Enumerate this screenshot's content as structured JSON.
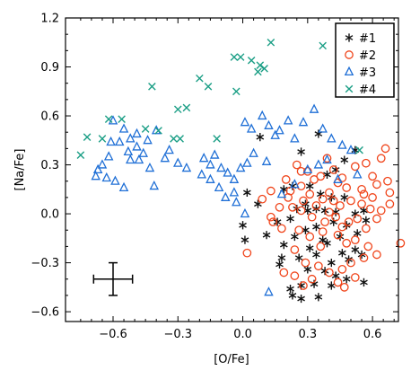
{
  "chart_data": {
    "type": "scatter",
    "xlabel": "[O/Fe]",
    "ylabel": "[Na/Fe]",
    "xlim": [
      -0.82,
      0.72
    ],
    "ylim": [
      -0.66,
      1.2
    ],
    "x_ticks": [
      -0.6,
      -0.3,
      0.0,
      0.3,
      0.6
    ],
    "x_tick_labels": [
      "−0.6",
      "−0.3",
      "0.0",
      "0.3",
      "0.6"
    ],
    "y_ticks": [
      -0.6,
      -0.3,
      0.0,
      0.3,
      0.6,
      0.9,
      1.2
    ],
    "y_tick_labels": [
      "−0.6",
      "−0.3",
      "0.0",
      "0.3",
      "0.6",
      "0.9",
      "1.2"
    ],
    "grid": false,
    "legend_position": "top-right",
    "error_bar": {
      "x": -0.6,
      "y": -0.4,
      "xerr": 0.09,
      "yerr": 0.1,
      "color": "#000000"
    },
    "series": [
      {
        "name": "#1",
        "marker": "asterisk",
        "color": "#111111",
        "points": [
          [
            0.08,
            0.47
          ],
          [
            0.27,
            0.38
          ],
          [
            0.35,
            0.49
          ],
          [
            0.52,
            0.39
          ],
          [
            0.47,
            0.33
          ],
          [
            0.43,
            0.27
          ],
          [
            0.39,
            0.24
          ],
          [
            0.02,
            0.13
          ],
          [
            0.07,
            0.06
          ],
          [
            0.19,
            0.15
          ],
          [
            0.23,
            0.17
          ],
          [
            0.31,
            0.17
          ],
          [
            0.36,
            0.12
          ],
          [
            0.41,
            0.1
          ],
          [
            0.47,
            0.1
          ],
          [
            0.29,
            0.06
          ],
          [
            0.34,
            0.03
          ],
          [
            0.38,
            0.02
          ],
          [
            0.43,
            0.01
          ],
          [
            0.52,
            0.0
          ],
          [
            0.56,
            0.02
          ],
          [
            0.25,
            0.03
          ],
          [
            0.3,
            0.02
          ],
          [
            0.0,
            -0.07
          ],
          [
            0.16,
            -0.05
          ],
          [
            0.22,
            -0.03
          ],
          [
            0.34,
            -0.08
          ],
          [
            0.42,
            -0.05
          ],
          [
            0.48,
            -0.07
          ],
          [
            0.57,
            -0.04
          ],
          [
            0.11,
            -0.13
          ],
          [
            0.24,
            -0.14
          ],
          [
            0.29,
            -0.1
          ],
          [
            0.37,
            -0.16
          ],
          [
            0.45,
            -0.14
          ],
          [
            0.53,
            -0.12
          ],
          [
            0.01,
            -0.16
          ],
          [
            0.19,
            -0.19
          ],
          [
            0.31,
            -0.21
          ],
          [
            0.39,
            -0.18
          ],
          [
            0.46,
            -0.24
          ],
          [
            0.52,
            -0.22
          ],
          [
            0.18,
            -0.27
          ],
          [
            0.26,
            -0.27
          ],
          [
            0.34,
            -0.25
          ],
          [
            0.41,
            -0.3
          ],
          [
            0.49,
            -0.28
          ],
          [
            0.55,
            -0.25
          ],
          [
            0.3,
            -0.34
          ],
          [
            0.38,
            -0.35
          ],
          [
            0.43,
            -0.38
          ],
          [
            0.48,
            -0.4
          ],
          [
            0.56,
            -0.42
          ],
          [
            0.22,
            -0.46
          ],
          [
            0.27,
            -0.44
          ],
          [
            0.33,
            -0.43
          ],
          [
            0.41,
            -0.44
          ],
          [
            0.23,
            -0.5
          ],
          [
            0.27,
            -0.52
          ],
          [
            0.35,
            -0.51
          ],
          [
            0.17,
            -0.31
          ]
        ]
      },
      {
        "name": "#2",
        "marker": "circle",
        "color": "#f0441a",
        "points": [
          [
            0.25,
            0.3
          ],
          [
            0.3,
            0.26
          ],
          [
            0.33,
            0.21
          ],
          [
            0.39,
            0.34
          ],
          [
            0.42,
            0.27
          ],
          [
            0.46,
            0.22
          ],
          [
            0.52,
            0.29
          ],
          [
            0.57,
            0.31
          ],
          [
            0.6,
            0.23
          ],
          [
            0.64,
            0.34
          ],
          [
            0.66,
            0.4
          ],
          [
            0.68,
            0.13
          ],
          [
            0.62,
            0.18
          ],
          [
            0.56,
            0.12
          ],
          [
            0.48,
            0.16
          ],
          [
            0.44,
            0.19
          ],
          [
            0.36,
            0.23
          ],
          [
            0.2,
            0.21
          ],
          [
            0.22,
            0.14
          ],
          [
            0.27,
            0.17
          ],
          [
            0.31,
            0.12
          ],
          [
            0.37,
            0.09
          ],
          [
            0.4,
            0.13
          ],
          [
            0.45,
            0.05
          ],
          [
            0.5,
            0.08
          ],
          [
            0.55,
            0.06
          ],
          [
            0.59,
            0.03
          ],
          [
            0.64,
            0.02
          ],
          [
            0.68,
            0.06
          ],
          [
            0.62,
            -0.03
          ],
          [
            0.57,
            -0.09
          ],
          [
            0.53,
            -0.03
          ],
          [
            0.49,
            -0.05
          ],
          [
            0.43,
            -0.02
          ],
          [
            0.38,
            -0.05
          ],
          [
            0.32,
            -0.02
          ],
          [
            0.27,
            0.02
          ],
          [
            0.23,
            0.04
          ],
          [
            0.14,
            -0.05
          ],
          [
            0.18,
            -0.09
          ],
          [
            0.26,
            -0.1
          ],
          [
            0.31,
            -0.14
          ],
          [
            0.37,
            -0.11
          ],
          [
            0.44,
            -0.13
          ],
          [
            0.48,
            -0.18
          ],
          [
            0.52,
            -0.16
          ],
          [
            0.58,
            -0.2
          ],
          [
            0.62,
            -0.25
          ],
          [
            0.56,
            -0.27
          ],
          [
            0.5,
            -0.3
          ],
          [
            0.46,
            -0.34
          ],
          [
            0.4,
            -0.36
          ],
          [
            0.35,
            -0.32
          ],
          [
            0.29,
            -0.3
          ],
          [
            0.24,
            -0.38
          ],
          [
            0.19,
            -0.36
          ],
          [
            0.28,
            -0.44
          ],
          [
            0.32,
            -0.4
          ],
          [
            0.44,
            -0.42
          ],
          [
            0.47,
            -0.45
          ],
          [
            0.52,
            -0.39
          ],
          [
            0.02,
            -0.24
          ],
          [
            0.13,
            -0.02
          ],
          [
            0.09,
            0.09
          ],
          [
            0.17,
            0.04
          ],
          [
            0.28,
            0.08
          ],
          [
            0.34,
            0.05
          ],
          [
            0.4,
            0.01
          ],
          [
            0.46,
            -0.08
          ],
          [
            0.55,
            0.15
          ],
          [
            0.6,
            0.1
          ],
          [
            0.67,
            0.2
          ],
          [
            0.73,
            -0.18
          ],
          [
            0.13,
            0.14
          ],
          [
            0.21,
            0.1
          ],
          [
            0.42,
            0.08
          ],
          [
            0.36,
            -0.2
          ],
          [
            0.24,
            -0.22
          ],
          [
            0.27,
            0.26
          ]
        ]
      },
      {
        "name": "#3",
        "marker": "triangle",
        "color": "#1f6fd6",
        "points": [
          [
            -0.6,
            0.57
          ],
          [
            -0.55,
            0.52
          ],
          [
            -0.49,
            0.49
          ],
          [
            -0.44,
            0.45
          ],
          [
            -0.4,
            0.51
          ],
          [
            -0.52,
            0.46
          ],
          [
            -0.57,
            0.44
          ],
          [
            -0.61,
            0.44
          ],
          [
            -0.53,
            0.38
          ],
          [
            -0.49,
            0.41
          ],
          [
            -0.46,
            0.37
          ],
          [
            -0.52,
            0.33
          ],
          [
            -0.48,
            0.33
          ],
          [
            -0.43,
            0.28
          ],
          [
            -0.62,
            0.35
          ],
          [
            -0.65,
            0.3
          ],
          [
            -0.67,
            0.27
          ],
          [
            -0.68,
            0.23
          ],
          [
            -0.63,
            0.22
          ],
          [
            -0.59,
            0.2
          ],
          [
            -0.55,
            0.16
          ],
          [
            -0.41,
            0.17
          ],
          [
            -0.36,
            0.34
          ],
          [
            -0.34,
            0.39
          ],
          [
            -0.3,
            0.31
          ],
          [
            -0.26,
            0.28
          ],
          [
            -0.18,
            0.34
          ],
          [
            -0.15,
            0.3
          ],
          [
            -0.13,
            0.36
          ],
          [
            -0.1,
            0.28
          ],
          [
            -0.07,
            0.25
          ],
          [
            -0.04,
            0.21
          ],
          [
            -0.01,
            0.28
          ],
          [
            0.02,
            0.31
          ],
          [
            -0.19,
            0.24
          ],
          [
            -0.15,
            0.21
          ],
          [
            -0.11,
            0.16
          ],
          [
            -0.08,
            0.1
          ],
          [
            -0.04,
            0.13
          ],
          [
            -0.03,
            0.07
          ],
          [
            0.01,
            0.56
          ],
          [
            0.04,
            0.52
          ],
          [
            0.09,
            0.6
          ],
          [
            0.12,
            0.54
          ],
          [
            0.15,
            0.48
          ],
          [
            0.17,
            0.51
          ],
          [
            0.21,
            0.57
          ],
          [
            0.24,
            0.46
          ],
          [
            0.28,
            0.56
          ],
          [
            0.33,
            0.64
          ],
          [
            0.37,
            0.52
          ],
          [
            0.41,
            0.46
          ],
          [
            0.46,
            0.42
          ],
          [
            0.5,
            0.39
          ],
          [
            0.39,
            0.33
          ],
          [
            0.35,
            0.3
          ],
          [
            0.3,
            0.27
          ],
          [
            0.05,
            0.37
          ],
          [
            0.01,
            0.0
          ],
          [
            0.12,
            -0.48
          ],
          [
            0.18,
            0.12
          ],
          [
            0.24,
            0.18
          ],
          [
            0.53,
            0.24
          ],
          [
            0.44,
            0.21
          ],
          [
            0.11,
            0.32
          ]
        ]
      },
      {
        "name": "#4",
        "marker": "x",
        "color": "#1a9e85",
        "points": [
          [
            -0.75,
            0.36
          ],
          [
            -0.72,
            0.47
          ],
          [
            -0.62,
            0.58
          ],
          [
            -0.56,
            0.58
          ],
          [
            -0.42,
            0.78
          ],
          [
            -0.45,
            0.52
          ],
          [
            -0.39,
            0.51
          ],
          [
            -0.32,
            0.46
          ],
          [
            -0.3,
            0.64
          ],
          [
            -0.26,
            0.65
          ],
          [
            -0.29,
            0.46
          ],
          [
            -0.2,
            0.83
          ],
          [
            -0.16,
            0.78
          ],
          [
            -0.12,
            0.46
          ],
          [
            -0.04,
            0.96
          ],
          [
            -0.03,
            0.75
          ],
          [
            -0.01,
            0.96
          ],
          [
            0.04,
            0.94
          ],
          [
            0.08,
            0.91
          ],
          [
            0.07,
            0.87
          ],
          [
            0.1,
            0.89
          ],
          [
            0.13,
            1.05
          ],
          [
            0.37,
            1.03
          ],
          [
            0.54,
            0.39
          ],
          [
            -0.65,
            0.46
          ]
        ]
      }
    ]
  }
}
